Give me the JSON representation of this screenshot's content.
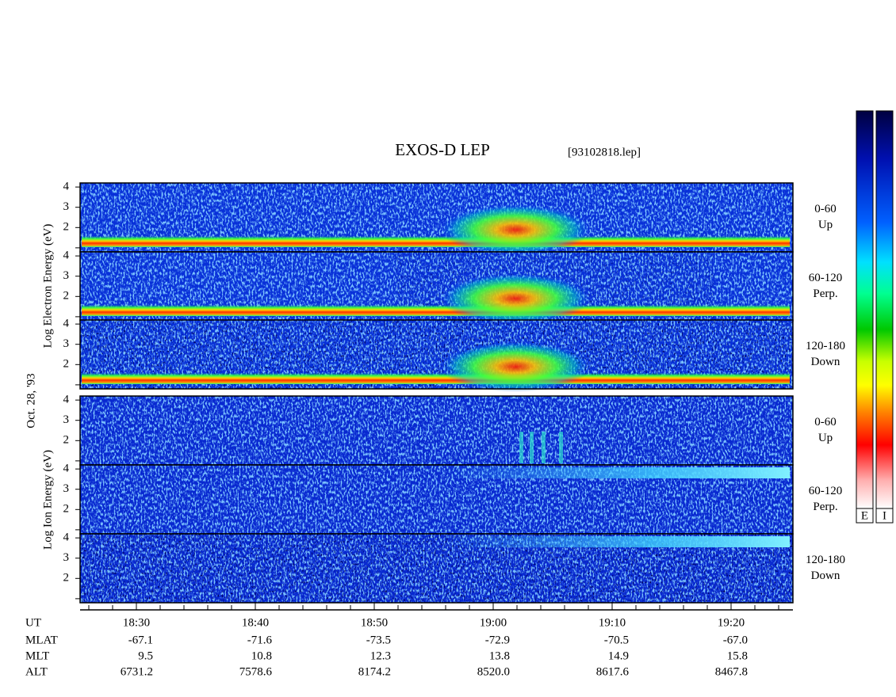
{
  "header": {
    "title": "EXOS-D LEP",
    "file": "[93102818.lep]"
  },
  "axes": {
    "electron_label": "Log Electron Energy (eV)",
    "date": "Oct. 28, '93",
    "ion_label": "Log Ion Energy (eV)",
    "energy_ticks": [
      2,
      3,
      4
    ]
  },
  "panels": [
    {
      "group": "electron",
      "angle": "0-60",
      "direction": "Up"
    },
    {
      "group": "electron",
      "angle": "60-120",
      "direction": "Perp."
    },
    {
      "group": "electron",
      "angle": "120-180",
      "direction": "Down"
    },
    {
      "group": "ion",
      "angle": "0-60",
      "direction": "Up"
    },
    {
      "group": "ion",
      "angle": "60-120",
      "direction": "Perp."
    },
    {
      "group": "ion",
      "angle": "120-180",
      "direction": "Down"
    }
  ],
  "ephemeris": [
    {
      "name": "UT",
      "values": [
        "18:30",
        "18:40",
        "18:50",
        "19:00",
        "19:10",
        "19:20"
      ]
    },
    {
      "name": "MLAT",
      "values": [
        "-67.1",
        "-71.6",
        "-73.5",
        "-72.9",
        "-70.5",
        "-67.0"
      ]
    },
    {
      "name": "MLT",
      "values": [
        "9.5",
        "10.8",
        "12.3",
        "13.8",
        "14.9",
        "15.8"
      ]
    },
    {
      "name": "ALT",
      "values": [
        "6731.2",
        "7578.6",
        "8174.2",
        "8520.0",
        "8617.6",
        "8467.8"
      ]
    }
  ],
  "colorbars": [
    "E",
    "I"
  ]
}
